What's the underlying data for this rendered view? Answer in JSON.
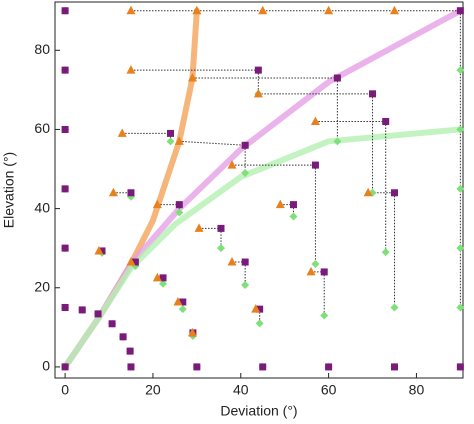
{
  "chart_data": {
    "type": "scatter",
    "x_label": "Deviation (°)",
    "y_label": "Elevation (°)",
    "xlim": [
      -2.3,
      90.6
    ],
    "ylim": [
      -2.8,
      92.2
    ],
    "xticks": [
      0,
      20,
      40,
      60,
      80
    ],
    "yticks": [
      0,
      20,
      40,
      60,
      80
    ],
    "curves": [
      {
        "color": "#f4a35a",
        "x": [
          0,
          8,
          15,
          20,
          26,
          29,
          30
        ],
        "y": [
          0,
          13,
          26,
          37,
          57,
          73,
          90
        ]
      },
      {
        "color": "#e6a0e6",
        "x": [
          0,
          8,
          15,
          26,
          40,
          60,
          90
        ],
        "y": [
          0,
          13,
          26,
          40,
          55,
          72,
          90
        ]
      },
      {
        "color": "#b4f0b0",
        "x": [
          0,
          8,
          15,
          25,
          40,
          60,
          90
        ],
        "y": [
          0,
          13,
          25,
          36,
          48,
          57,
          60
        ]
      }
    ],
    "series": [
      {
        "marker": "diamond",
        "color": "#7ee07a",
        "points": [
          [
            90,
            15
          ],
          null,
          null,
          null,
          null,
          [
            90,
            75
          ],
          [
            90,
            60
          ],
          [
            90,
            45
          ],
          [
            90,
            30
          ],
          [
            44,
            69
          ],
          [
            62,
            57
          ],
          [
            70,
            44
          ],
          [
            73,
            29
          ],
          [
            24,
            57
          ],
          [
            41,
            49
          ],
          [
            57,
            26
          ],
          [
            52,
            38
          ],
          [
            15,
            43
          ],
          [
            75,
            15
          ],
          [
            26,
            39
          ],
          [
            35.5,
            30
          ],
          [
            8.4,
            28.8
          ],
          [
            16,
            25.5
          ],
          [
            41,
            20.7
          ],
          [
            59,
            13
          ],
          [
            22.3,
            21
          ],
          [
            26.8,
            14.6
          ],
          [
            44.3,
            11
          ],
          [
            29.1,
            7.8
          ],
          [
            3.9,
            14.4
          ],
          [
            7.5,
            13.4
          ],
          [
            10.7,
            10.9
          ],
          [
            13.2,
            7.6
          ],
          [
            14.8,
            4
          ],
          [
            0,
            90
          ],
          [
            0,
            75
          ],
          [
            0,
            60
          ],
          [
            0,
            45
          ],
          [
            0,
            30
          ],
          [
            0,
            15
          ],
          [
            0,
            0
          ],
          [
            15,
            0
          ],
          [
            30,
            0
          ],
          [
            45,
            0
          ],
          [
            60,
            0
          ],
          [
            75,
            0
          ],
          [
            90,
            0
          ]
        ]
      },
      {
        "marker": "square",
        "color": "#7a1a7a",
        "points": [
          [
            90,
            90
          ],
          null,
          null,
          null,
          null,
          null,
          null,
          null,
          null,
          [
            44,
            75
          ],
          [
            62,
            73
          ],
          [
            70,
            69
          ],
          [
            73,
            62
          ],
          [
            24,
            59
          ],
          [
            41,
            56
          ],
          [
            57,
            51
          ],
          [
            52,
            41
          ],
          [
            15,
            44
          ],
          [
            75,
            44
          ],
          [
            26,
            41
          ],
          [
            35.5,
            35
          ],
          [
            8.4,
            29.3
          ],
          [
            16,
            26.5
          ],
          [
            41,
            26.5
          ],
          [
            59,
            24
          ],
          [
            22.3,
            22.5
          ],
          [
            26.8,
            16.4
          ],
          [
            44.3,
            14.6
          ],
          [
            29.1,
            8.6
          ],
          [
            3.9,
            14.4
          ],
          [
            7.5,
            13.4
          ],
          [
            10.7,
            10.9
          ],
          [
            13.2,
            7.6
          ],
          [
            14.8,
            4
          ],
          [
            0,
            90
          ],
          [
            0,
            75
          ],
          [
            0,
            60
          ],
          [
            0,
            45
          ],
          [
            0,
            30
          ],
          [
            0,
            15
          ],
          [
            0,
            0
          ],
          [
            15,
            0
          ],
          [
            30,
            0
          ],
          [
            45,
            0
          ],
          [
            60,
            0
          ],
          [
            75,
            0
          ],
          [
            90,
            0
          ]
        ]
      },
      {
        "marker": "triangle",
        "color": "#e8801c",
        "points": [
          [
            15,
            90
          ],
          [
            30,
            90
          ],
          [
            45,
            90
          ],
          [
            60,
            90
          ],
          [
            75,
            90
          ],
          null,
          null,
          null,
          null,
          [
            15,
            75
          ],
          [
            29,
            73
          ],
          [
            44,
            69
          ],
          [
            57,
            62
          ],
          [
            13,
            59
          ],
          [
            26,
            57
          ],
          [
            38,
            51
          ],
          [
            49,
            41
          ],
          [
            11,
            44
          ],
          [
            69,
            44
          ],
          [
            21,
            41
          ],
          [
            30.5,
            35
          ],
          [
            7.7,
            29.3
          ],
          [
            15,
            26.5
          ],
          [
            38,
            26.5
          ],
          [
            56,
            24
          ],
          [
            21,
            22.5
          ],
          [
            25.7,
            16.4
          ],
          [
            43.4,
            14.6
          ],
          [
            29,
            8.6
          ],
          null,
          null,
          null,
          null,
          null,
          null,
          null,
          null,
          null,
          null,
          null,
          null,
          null,
          null,
          null,
          null,
          null,
          null
        ]
      }
    ]
  }
}
